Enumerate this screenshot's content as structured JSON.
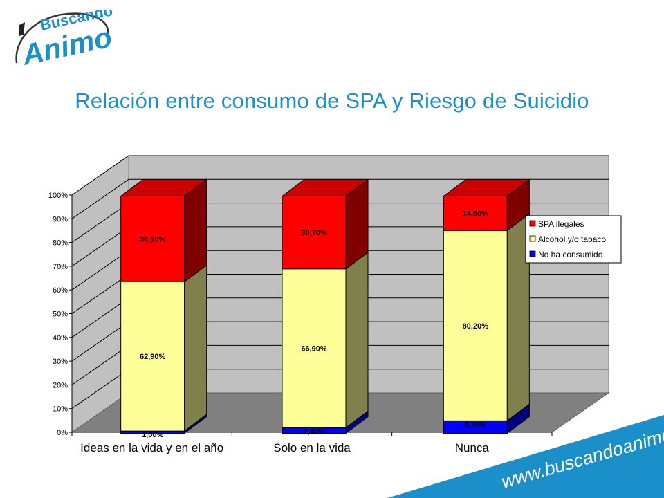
{
  "logo": {
    "line1": "Buscando",
    "line2": "Animo"
  },
  "title": "Relación entre consumo de SPA y Riesgo de Suicidio",
  "website": "www.buscandoanimo.org",
  "colors": {
    "title": "#1a8fc9",
    "spa": "#ff0000",
    "alcohol": "#ffff99",
    "none": "#0000ff",
    "banner": "#1a8fc9"
  },
  "chart_data": {
    "type": "bar",
    "stacked": true,
    "three_d": true,
    "categories": [
      "Ideas en la vida y en el año",
      "Solo en la vida",
      "Nunca"
    ],
    "series": [
      {
        "name": "No ha consumido",
        "values": [
          1.0,
          2.4,
          5.3
        ],
        "labels": [
          "1,00%",
          "2,40%",
          "5,30%"
        ],
        "color": "#0000ff"
      },
      {
        "name": "Alcohol y/o tabaco",
        "values": [
          62.9,
          66.9,
          80.2
        ],
        "labels": [
          "62,90%",
          "66,90%",
          "80,20%"
        ],
        "color": "#ffff99"
      },
      {
        "name": "SPA ilegales",
        "values": [
          36.1,
          30.7,
          14.5
        ],
        "labels": [
          "36,10%",
          "30,70%",
          "14,50%"
        ],
        "color": "#ff0000"
      }
    ],
    "legend_order": [
      "SPA ilegales",
      "Alcohol y/o tabaco",
      "No ha consumido"
    ],
    "yticks": [
      "0%",
      "10%",
      "20%",
      "30%",
      "40%",
      "50%",
      "60%",
      "70%",
      "80%",
      "90%",
      "100%"
    ],
    "ylim": [
      0,
      100
    ],
    "grid": true,
    "legend_position": "right"
  }
}
